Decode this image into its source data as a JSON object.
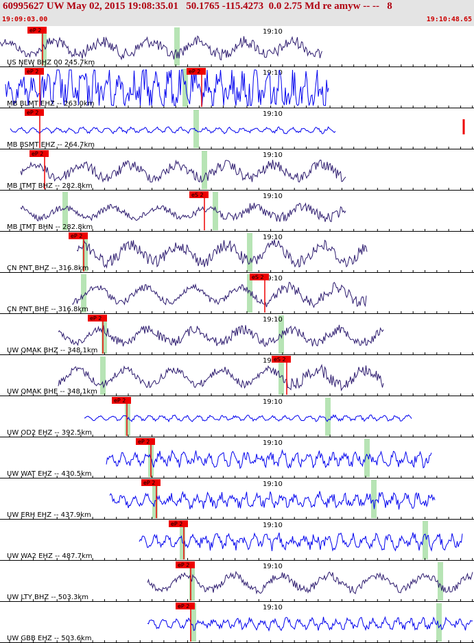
{
  "header": {
    "title": "60995627 UW May 02, 2015 19:08:35.01   50.1765 -115.4273  0.0 2.75 Md re amyw -- --   8",
    "start_time": "19:09:03.00",
    "end_time": "19:10:48.65"
  },
  "time_tick_label": "19:10",
  "colors": {
    "trace_dark": "#2c1a6e",
    "trace_blue": "#0000ee",
    "pick": "#ee0000",
    "window": "#b7e4b5",
    "header_bg": "#e4e4e4"
  },
  "traces": [
    {
      "label": "US NEW BHZ 00 245.7km",
      "color": "dark",
      "pick": "eP 2",
      "s_pick": "",
      "amp": 0.35,
      "noise": 0.5
    },
    {
      "label": "MB BLMT EHZ -- 263.0km",
      "color": "blue",
      "pick": "eP 2",
      "s_pick": "eP 2",
      "amp": 0.55,
      "noise": 0.9
    },
    {
      "label": "MB BSMT EHZ -- 264.7km",
      "color": "blue",
      "pick": "eP 2",
      "s_pick": "",
      "amp": 0.12,
      "noise": 0.35
    },
    {
      "label": "MB JTMT BHZ -- 282.8km",
      "color": "dark",
      "pick": "eP 2",
      "s_pick": "",
      "amp": 0.35,
      "noise": 0.45
    },
    {
      "label": "MB JTMT BHN -- 282.8km",
      "color": "dark",
      "pick": "",
      "s_pick": "eS 2",
      "amp": 0.3,
      "noise": 0.5
    },
    {
      "label": "CN PNT BHZ -- 316.8km",
      "color": "dark",
      "pick": "eP 2",
      "s_pick": "",
      "amp": 0.45,
      "noise": 0.4
    },
    {
      "label": "CN PNT BHE -- 316.8km",
      "color": "dark",
      "pick": "",
      "s_pick": "eS 2",
      "amp": 0.4,
      "noise": 0.4
    },
    {
      "label": "UW QMAK BHZ -- 348.1km",
      "color": "dark",
      "pick": "eP 2",
      "s_pick": "",
      "amp": 0.35,
      "noise": 0.4
    },
    {
      "label": "UW QMAK BHE -- 348.1km",
      "color": "dark",
      "pick": "",
      "s_pick": "eS 2",
      "amp": 0.4,
      "noise": 0.45
    },
    {
      "label": "UW OD2 EHZ -- 392.5km",
      "color": "blue",
      "pick": "eP 2",
      "s_pick": "",
      "amp": 0.12,
      "noise": 0.35
    },
    {
      "label": "UW WAT EHZ -- 430.5km",
      "color": "blue",
      "pick": "eP 2",
      "s_pick": "",
      "amp": 0.25,
      "noise": 0.6
    },
    {
      "label": "UW ERH EHZ -- 437.9km",
      "color": "blue",
      "pick": "eP 2",
      "s_pick": "",
      "amp": 0.25,
      "noise": 0.6
    },
    {
      "label": "UW WA2 EHZ -- 487.7km",
      "color": "blue",
      "pick": "eP 2",
      "s_pick": "",
      "amp": 0.25,
      "noise": 0.6
    },
    {
      "label": "UW LTY BHZ -- 503.3km",
      "color": "dark",
      "pick": "eP 2",
      "s_pick": "",
      "amp": 0.4,
      "noise": 0.3
    },
    {
      "label": "UW GBB EHZ -- 503.6km",
      "color": "blue",
      "pick": "eP 2",
      "s_pick": "",
      "amp": 0.2,
      "noise": 0.5
    }
  ]
}
